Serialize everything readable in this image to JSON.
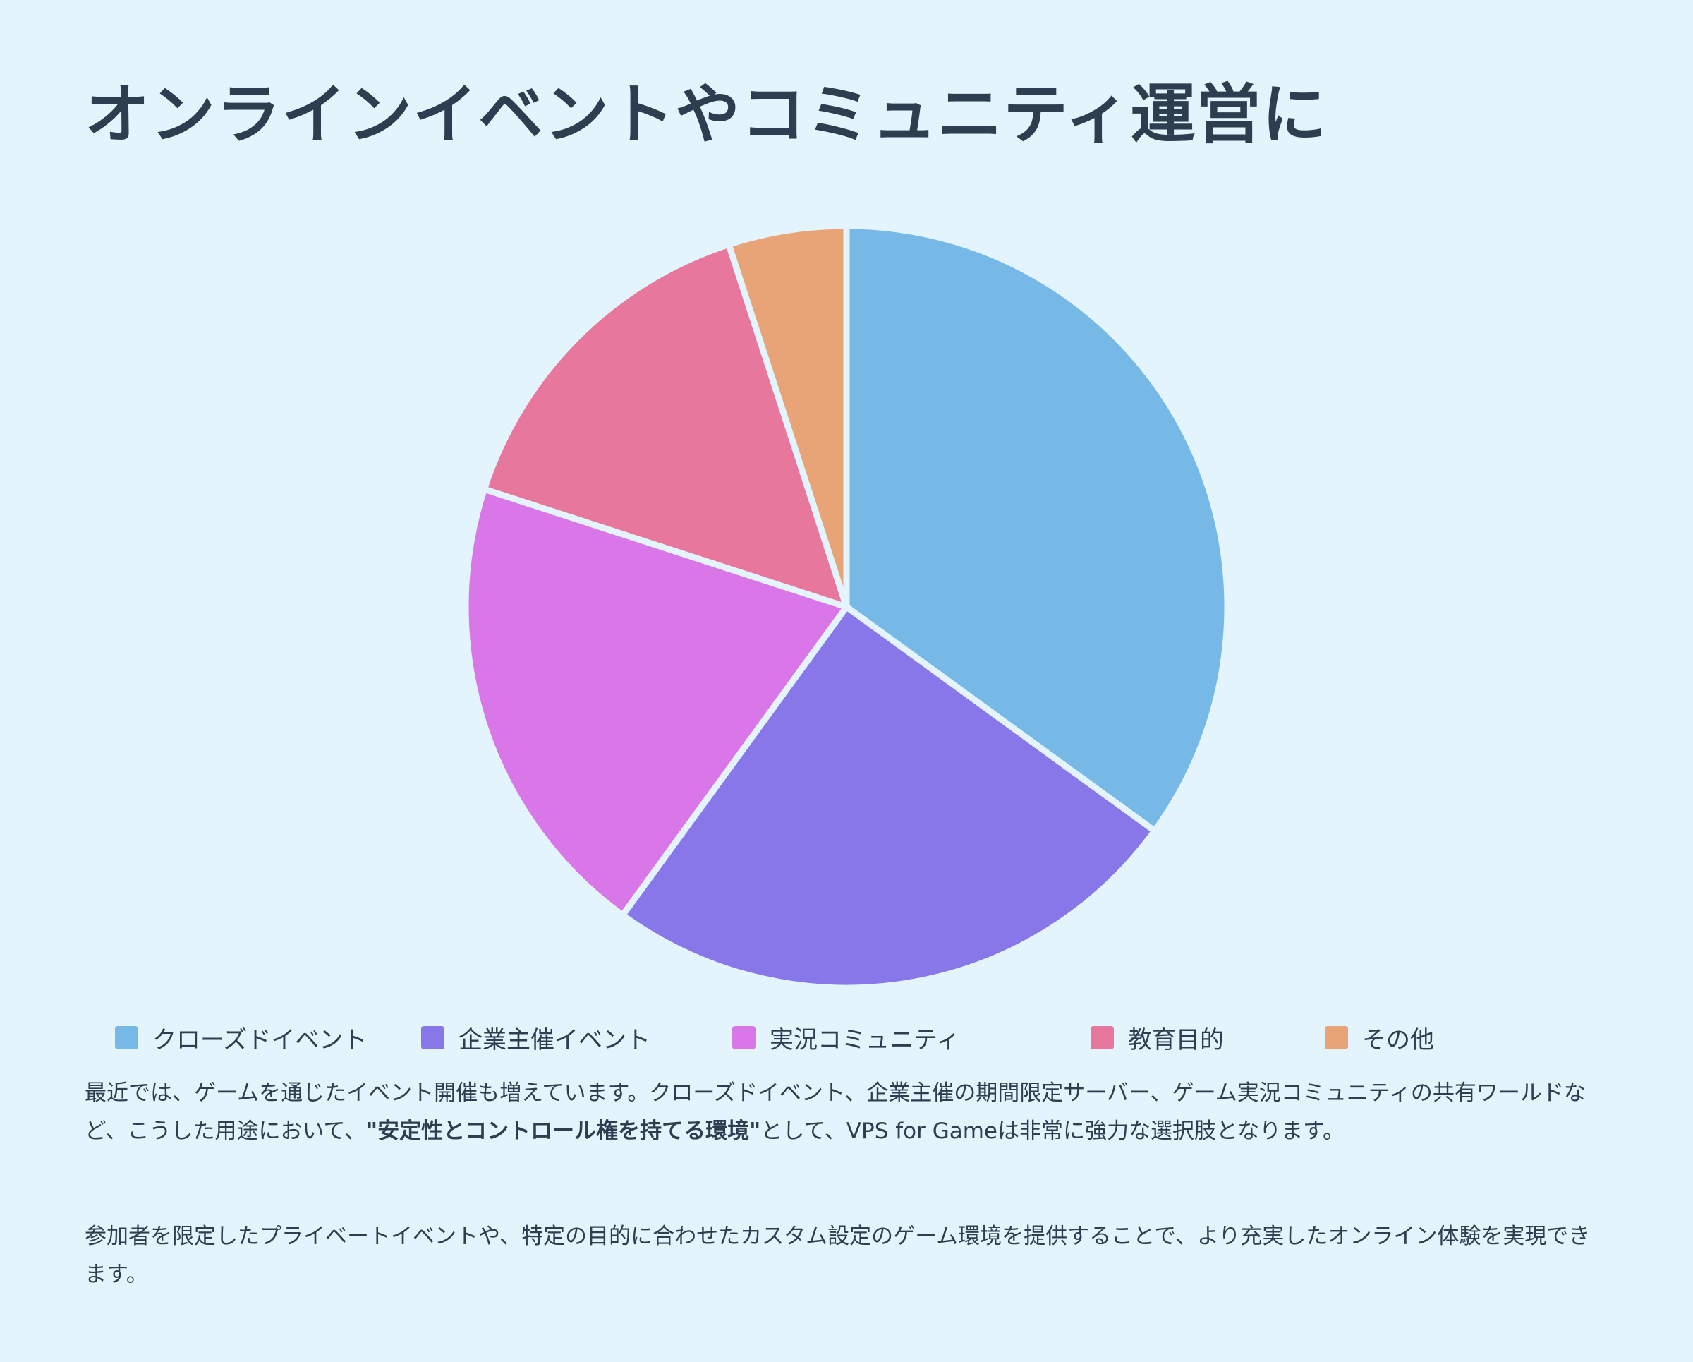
{
  "title": "オンラインイベントやコミュニティ運営に",
  "chart_data": {
    "type": "pie",
    "title": "",
    "categories": [
      "クローズドイベント",
      "企業主催イベント",
      "実況コミュニティ",
      "教育目的",
      "その他"
    ],
    "values": [
      35,
      25,
      20,
      15,
      5
    ],
    "colors": [
      "#77b9e6",
      "#8777e8",
      "#da77e8",
      "#e7779d",
      "#e8a377"
    ],
    "start_angle": "12 o'clock",
    "direction": "clockwise",
    "legend_position": "bottom"
  },
  "paragraphs": {
    "p1_before": "最近では、ゲームを通じたイベント開催も増えています。クローズドイベント、企業主催の期間限定サーバー、ゲーム実況コミュニティの共有ワールドなど、こうした用途において、",
    "p1_bold": "\"安定性とコントロール権を持てる環境\"",
    "p1_after": "として、VPS for Gameは非常に強力な選択肢となります。",
    "p2": "参加者を限定したプライベートイベントや、特定の目的に合わせたカスタム設定のゲーム環境を提供することで、より充実したオンライン体験を実現できます。"
  }
}
